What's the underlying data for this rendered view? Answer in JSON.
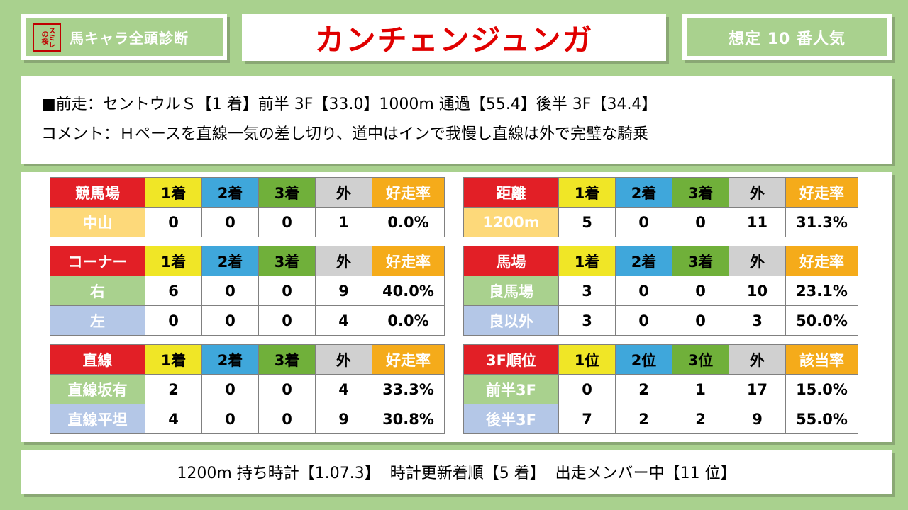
{
  "header": {
    "logo_text": "スミレの桜",
    "left_label": "馬キャラ全頭診断",
    "title": "カンチェンジュンガ",
    "right_label": "想定 10 番人気"
  },
  "info": {
    "line1": "■前走：セントウルＳ【1 着】前半 3F【33.0】1000m 通過【55.4】後半 3F【34.4】",
    "line2": "コメント：Ｈペースを直線一気の差し切り、道中はインで我慢し直線は外で完璧な騎乗"
  },
  "tables": {
    "course": {
      "headers": [
        "競馬場",
        "1着",
        "2着",
        "3着",
        "外",
        "好走率"
      ],
      "rows": [
        {
          "label": "中山",
          "v": [
            "0",
            "0",
            "0",
            "1",
            "0.0%"
          ]
        }
      ]
    },
    "distance": {
      "headers": [
        "距離",
        "1着",
        "2着",
        "3着",
        "外",
        "好走率"
      ],
      "rows": [
        {
          "label": "1200m",
          "v": [
            "5",
            "0",
            "0",
            "11",
            "31.3%"
          ]
        }
      ]
    },
    "corner": {
      "headers": [
        "コーナー",
        "1着",
        "2着",
        "3着",
        "外",
        "好走率"
      ],
      "rows": [
        {
          "label": "右",
          "v": [
            "6",
            "0",
            "0",
            "9",
            "40.0%"
          ]
        },
        {
          "label": "左",
          "v": [
            "0",
            "0",
            "0",
            "4",
            "0.0%"
          ]
        }
      ]
    },
    "track": {
      "headers": [
        "馬場",
        "1着",
        "2着",
        "3着",
        "外",
        "好走率"
      ],
      "rows": [
        {
          "label": "良馬場",
          "v": [
            "3",
            "0",
            "0",
            "10",
            "23.1%"
          ]
        },
        {
          "label": "良以外",
          "v": [
            "3",
            "0",
            "0",
            "3",
            "50.0%"
          ]
        }
      ]
    },
    "straight": {
      "headers": [
        "直線",
        "1着",
        "2着",
        "3着",
        "外",
        "好走率"
      ],
      "rows": [
        {
          "label": "直線坂有",
          "v": [
            "2",
            "0",
            "0",
            "4",
            "33.3%"
          ]
        },
        {
          "label": "直線平坦",
          "v": [
            "4",
            "0",
            "0",
            "9",
            "30.8%"
          ]
        }
      ]
    },
    "final3f": {
      "headers": [
        "3F順位",
        "1位",
        "2位",
        "3位",
        "外",
        "該当率"
      ],
      "rows": [
        {
          "label": "前半3F",
          "v": [
            "0",
            "2",
            "1",
            "17",
            "15.0%"
          ]
        },
        {
          "label": "後半3F",
          "v": [
            "7",
            "2",
            "2",
            "9",
            "55.0%"
          ]
        }
      ]
    }
  },
  "footer": {
    "text": "1200m 持ち時計【1.07.3】  時計更新着順【5 着】  出走メンバー中【11 位】"
  },
  "colors": {
    "background": "#a9d18e",
    "title_red": "#e00000",
    "header_red": "#e21f26",
    "header_yellow": "#f0e626",
    "header_blue": "#3fa7db",
    "header_green": "#70b03a",
    "header_gray": "#d0d0d0",
    "header_orange": "#f5ab1a"
  }
}
